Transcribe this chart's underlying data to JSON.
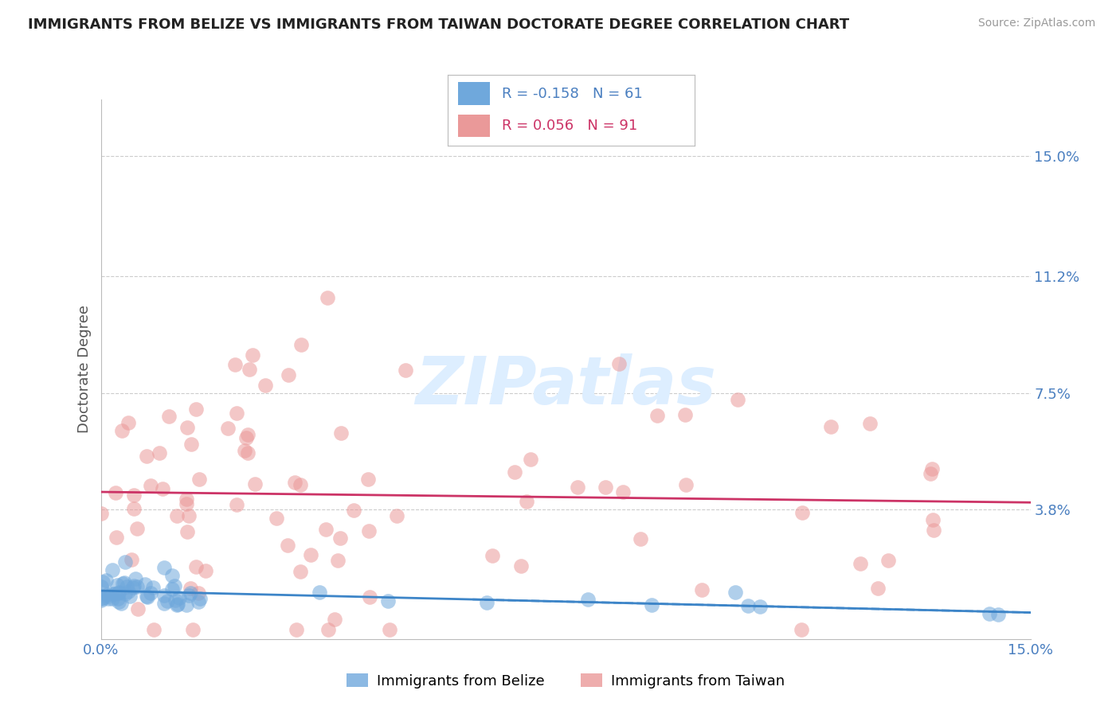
{
  "title": "IMMIGRANTS FROM BELIZE VS IMMIGRANTS FROM TAIWAN DOCTORATE DEGREE CORRELATION CHART",
  "source": "Source: ZipAtlas.com",
  "ylabel": "Doctorate Degree",
  "ytick_labels": [
    "15.0%",
    "11.2%",
    "7.5%",
    "3.8%"
  ],
  "ytick_values": [
    0.15,
    0.112,
    0.075,
    0.038
  ],
  "xmin": 0.0,
  "xmax": 0.15,
  "ymin": -0.003,
  "ymax": 0.168,
  "legend1_r": "-0.158",
  "legend1_n": "61",
  "legend2_r": "0.056",
  "legend2_n": "91",
  "color_belize": "#6fa8dc",
  "color_taiwan": "#ea9999",
  "color_belize_line": "#3d85c8",
  "color_taiwan_line": "#cc3366",
  "bottom_label_belize": "Immigrants from Belize",
  "bottom_label_taiwan": "Immigrants from Taiwan"
}
